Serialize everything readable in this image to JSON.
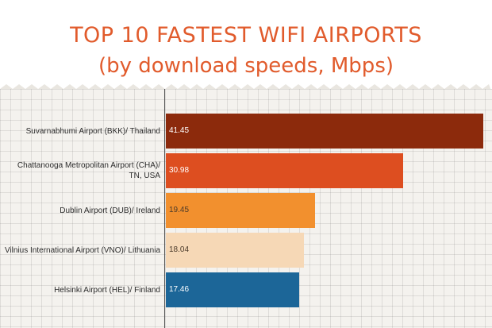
{
  "title": {
    "line1": "TOP 10 FASTEST WIFI AIRPORTS",
    "line2": "(by download speeds, Mbps)"
  },
  "chart_data": {
    "type": "bar",
    "orientation": "horizontal",
    "title": "TOP 10 FASTEST WIFI AIRPORTS (by download speeds, Mbps)",
    "xlabel": "",
    "ylabel": "",
    "xlim": [
      0,
      50
    ],
    "grid": true,
    "categories": [
      "Suvarnabhumi Airport (BKK)/ Thailand",
      "Chattanooga Metropolitan Airport (CHA)/ TN, USA",
      "Dublin Airport (DUB)/ Ireland",
      "Vilnius International Airport (VNO)/ Lithuania",
      "Helsinki Airport (HEL)/ Finland"
    ],
    "values": [
      41.45,
      30.98,
      19.45,
      18.04,
      17.46
    ],
    "value_labels": [
      "41.45",
      "30.98",
      "19.45",
      "18.04",
      "17.46"
    ],
    "colors": [
      "#8c2a0c",
      "#dd4e20",
      "#f2902e",
      "#f6d8b6",
      "#1c6698"
    ],
    "label_colors": [
      "#ffffff",
      "#ffffff",
      "#4a3a2a",
      "#4a3a2a",
      "#ffffff"
    ]
  }
}
